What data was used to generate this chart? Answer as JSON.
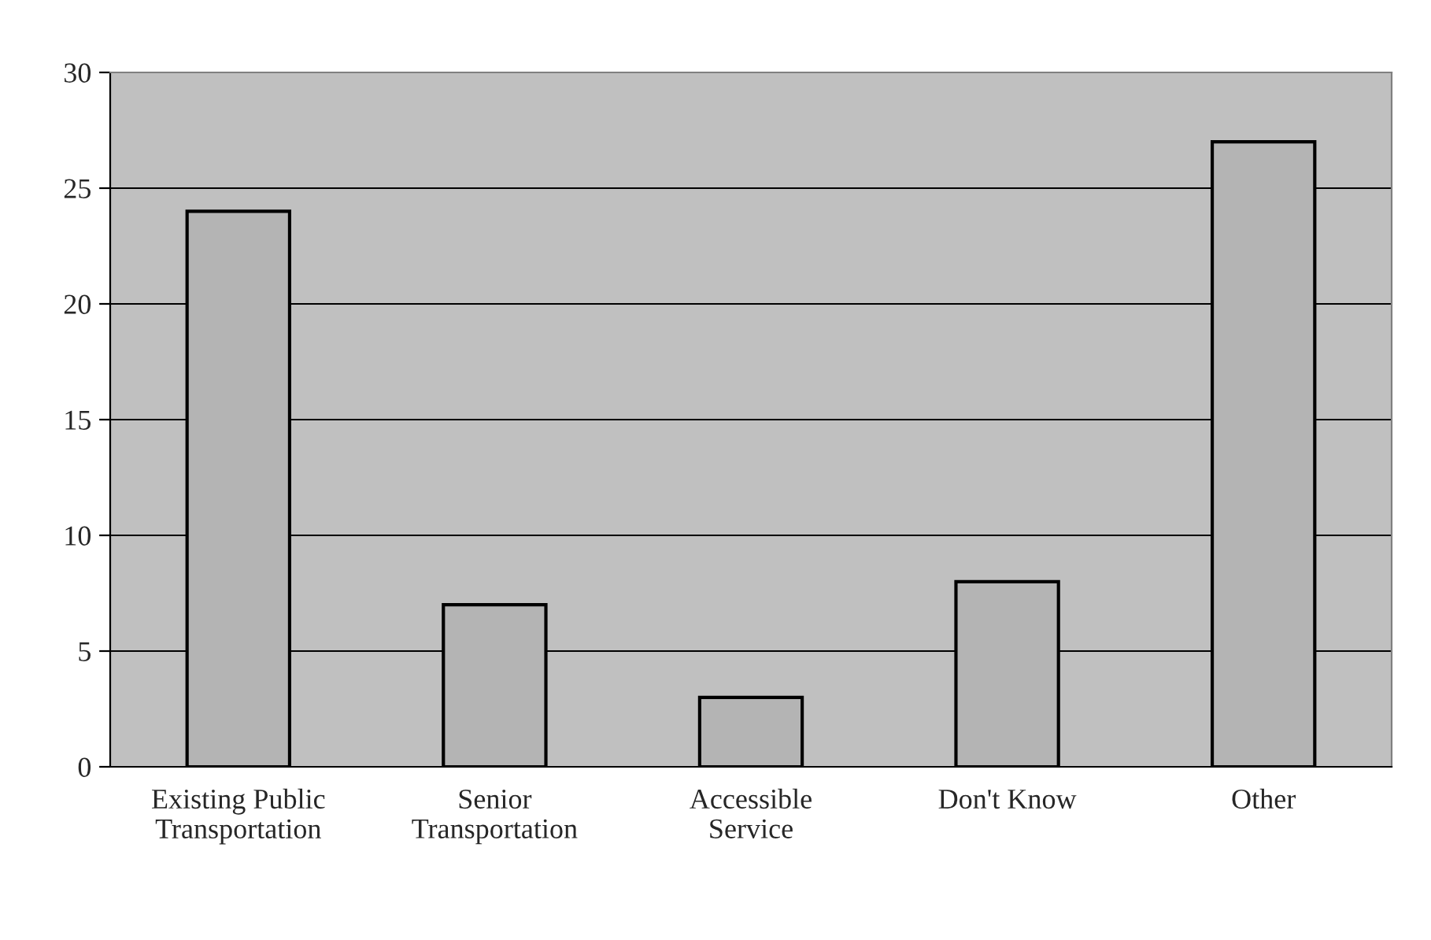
{
  "chart_data": {
    "type": "bar",
    "categories": [
      "Existing Public\nTransportation",
      "Senior\nTransportation",
      "Accessible\nService",
      "Don't Know",
      "Other"
    ],
    "values": [
      24,
      7,
      3,
      8,
      27
    ],
    "color": "#b4b4b4",
    "ylim": [
      0,
      30
    ],
    "yticks": [
      0,
      5,
      10,
      15,
      20,
      25,
      30
    ],
    "grid": "y",
    "legend": false
  }
}
